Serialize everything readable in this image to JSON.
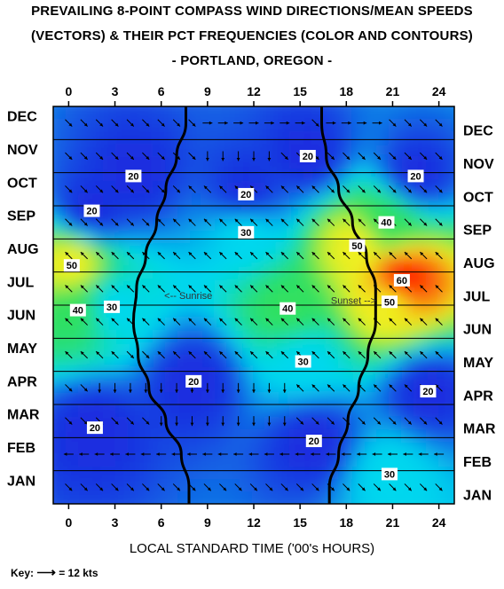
{
  "title_lines": [
    "PREVAILING  8-POINT COMPASS WIND DIRECTIONS/MEAN SPEEDS",
    "(VECTORS) & THEIR PCT FREQUENCIES (COLOR AND CONTOURS)",
    "- PORTLAND, OREGON -"
  ],
  "xlabel": "LOCAL STANDARD TIME ('00's HOURS)",
  "key": {
    "label": "Key:",
    "arrow": "⟶",
    "value": "= 12 kts"
  },
  "colors": {
    "background": "#ffffff",
    "axis": "#000000",
    "grid": "#000000",
    "terminator": "#000000"
  },
  "chart_data": {
    "type": "heatmap",
    "x_ticks": [
      0,
      3,
      6,
      9,
      12,
      15,
      18,
      21,
      24
    ],
    "x_tick_labels": [
      "0",
      "3",
      "6",
      "9",
      "12",
      "15",
      "18",
      "21",
      "24"
    ],
    "xlim": [
      -1,
      25
    ],
    "months_top_to_bottom": [
      "DEC",
      "NOV",
      "OCT",
      "SEP",
      "AUG",
      "JUL",
      "JUN",
      "MAY",
      "APR",
      "MAR",
      "FEB",
      "JAN"
    ],
    "z_description": "percent frequency of prevailing direction",
    "color_scale": [
      {
        "value": 10,
        "color": "#6a10c8"
      },
      {
        "value": 20,
        "color": "#1a2ee0"
      },
      {
        "value": 30,
        "color": "#00d8ee"
      },
      {
        "value": 40,
        "color": "#30e060"
      },
      {
        "value": 50,
        "color": "#f0f020"
      },
      {
        "value": 60,
        "color": "#ff2000"
      }
    ],
    "contour_labels": [
      {
        "text": "20",
        "hour": 15.5,
        "month": "NOV"
      },
      {
        "text": "20",
        "hour": 4.2,
        "month": "OCT",
        "offset": -0.4
      },
      {
        "text": "20",
        "hour": 11.5,
        "month": "OCT",
        "offset": 0.15
      },
      {
        "text": "20",
        "hour": 22.5,
        "month": "OCT",
        "offset": -0.4
      },
      {
        "text": "20",
        "hour": 1.5,
        "month": "SEP",
        "offset": -0.35
      },
      {
        "text": "30",
        "hour": 11.5,
        "month": "SEP",
        "offset": 0.3
      },
      {
        "text": "40",
        "hour": 20.6,
        "month": "SEP"
      },
      {
        "text": "50",
        "hour": 0.2,
        "month": "AUG",
        "offset": 0.3
      },
      {
        "text": "50",
        "hour": 18.7,
        "month": "AUG",
        "offset": -0.3
      },
      {
        "text": "60",
        "hour": 21.6,
        "month": "JUL",
        "offset": -0.25
      },
      {
        "text": "30",
        "hour": 2.8,
        "month": "JUN",
        "offset": -0.45
      },
      {
        "text": "40",
        "hour": 0.6,
        "month": "JUN",
        "offset": -0.35
      },
      {
        "text": "40",
        "hour": 14.2,
        "month": "JUN",
        "offset": -0.4
      },
      {
        "text": "50",
        "hour": 20.8,
        "month": "JUN",
        "offset": -0.6
      },
      {
        "text": "30",
        "hour": 15.2,
        "month": "MAY",
        "offset": 0.2
      },
      {
        "text": "20",
        "hour": 8.1,
        "month": "APR",
        "offset": -0.2
      },
      {
        "text": "20",
        "hour": 23.3,
        "month": "APR",
        "offset": 0.1
      },
      {
        "text": "20",
        "hour": 1.7,
        "month": "MAR",
        "offset": 0.2
      },
      {
        "text": "20",
        "hour": 15.9,
        "month": "FEB",
        "offset": -0.4
      },
      {
        "text": "30",
        "hour": 20.8,
        "month": "JAN",
        "offset": -0.4
      }
    ],
    "annotations": [
      {
        "text": "<-- Sunrise",
        "hour": 6.2,
        "month": "JUL",
        "offset": 0.2
      },
      {
        "text": "Sunset -->",
        "hour": 17.0,
        "month": "JUN",
        "offset": -0.65
      }
    ],
    "sunrise_hours": {
      "JAN": 7.8,
      "FEB": 7.3,
      "MAR": 6.3,
      "APR": 5.2,
      "MAY": 4.5,
      "JUN": 4.2,
      "JUL": 4.4,
      "AUG": 5.0,
      "SEP": 5.7,
      "OCT": 6.3,
      "NOV": 7.0,
      "DEC": 7.6
    },
    "sunset_hours": {
      "JAN": 16.9,
      "FEB": 17.5,
      "MAR": 18.1,
      "APR": 18.8,
      "MAY": 19.4,
      "JUN": 19.9,
      "JUL": 19.9,
      "AUG": 19.3,
      "SEP": 18.4,
      "OCT": 17.5,
      "NOV": 16.7,
      "DEC": 16.4
    },
    "prevailing_directions": {
      "DEC": [
        "SE",
        "SE",
        "SE",
        "SE",
        "SE",
        "SE",
        "SE",
        "SE",
        "SE",
        "E",
        "E",
        "E",
        "E",
        "E",
        "E",
        "E",
        "SE",
        "E",
        "E",
        "E",
        "E",
        "SE",
        "SE",
        "SE",
        "SE"
      ],
      "NOV": [
        "SE",
        "SE",
        "SE",
        "SE",
        "SE",
        "SE",
        "SE",
        "SE",
        "SE",
        "S",
        "S",
        "S",
        "S",
        "S",
        "SE",
        "SE",
        "SE",
        "SE",
        "SE",
        "SE",
        "SE",
        "SE",
        "SE",
        "SE",
        "SE"
      ],
      "OCT": [
        "SE",
        "SE",
        "SE",
        "SE",
        "SE",
        "SE",
        "SE",
        "SE",
        "NW",
        "NW",
        "NW",
        "NW",
        "NW",
        "NW",
        "NW",
        "NW",
        "NW",
        "SE",
        "SE",
        "SE",
        "SE",
        "SE",
        "SE",
        "SE",
        "SE"
      ],
      "SEP": [
        "SE",
        "SE",
        "SE",
        "SE",
        "SE",
        "SE",
        "NW",
        "NW",
        "NW",
        "NW",
        "NW",
        "NW",
        "NW",
        "NW",
        "NW",
        "NW",
        "NW",
        "NW",
        "NW",
        "NW",
        "NW",
        "NW",
        "SE",
        "SE",
        "SE"
      ],
      "AUG": [
        "NW",
        "NW",
        "NW",
        "NW",
        "NW",
        "NW",
        "NW",
        "NW",
        "NW",
        "NW",
        "NW",
        "NW",
        "NW",
        "NW",
        "NW",
        "NW",
        "NW",
        "NW",
        "NW",
        "NW",
        "NW",
        "NW",
        "NW",
        "NW",
        "NW"
      ],
      "JUL": [
        "NW",
        "NW",
        "NW",
        "NW",
        "NW",
        "NW",
        "NW",
        "NW",
        "NW",
        "NW",
        "NW",
        "NW",
        "NW",
        "NW",
        "NW",
        "NW",
        "NW",
        "NW",
        "NW",
        "NW",
        "NW",
        "NW",
        "NW",
        "NW",
        "NW"
      ],
      "JUN": [
        "NW",
        "NW",
        "NW",
        "NW",
        "NW",
        "NW",
        "NW",
        "NW",
        "NW",
        "NW",
        "NW",
        "NW",
        "NW",
        "NW",
        "NW",
        "NW",
        "NW",
        "NW",
        "NW",
        "NW",
        "NW",
        "NW",
        "NW",
        "NW",
        "NW"
      ],
      "MAY": [
        "NW",
        "NW",
        "NW",
        "NW",
        "SE",
        "SE",
        "NW",
        "NW",
        "NW",
        "NW",
        "NW",
        "NW",
        "NW",
        "NW",
        "NW",
        "NW",
        "NW",
        "NW",
        "NW",
        "NW",
        "NW",
        "NW",
        "NW",
        "NW",
        "NW"
      ],
      "APR": [
        "SE",
        "SE",
        "S",
        "S",
        "S",
        "S",
        "S",
        "S",
        "S",
        "S",
        "S",
        "S",
        "S",
        "S",
        "S",
        "NW",
        "NW",
        "NW",
        "NW",
        "NW",
        "NW",
        "NW",
        "NW",
        "NW",
        "NW"
      ],
      "MAR": [
        "SE",
        "SE",
        "SE",
        "SE",
        "SE",
        "SE",
        "S",
        "S",
        "S",
        "S",
        "S",
        "S",
        "S",
        "S",
        "S",
        "SE",
        "SE",
        "SE",
        "SE",
        "SE",
        "SE",
        "SE",
        "SE",
        "SE",
        "SE"
      ],
      "FEB": [
        "W",
        "W",
        "W",
        "W",
        "W",
        "W",
        "W",
        "W",
        "W",
        "W",
        "W",
        "W",
        "W",
        "W",
        "W",
        "W",
        "W",
        "W",
        "W",
        "W",
        "W",
        "W",
        "W",
        "W",
        "W"
      ],
      "JAN": [
        "SE",
        "SE",
        "SE",
        "SE",
        "SE",
        "SE",
        "SE",
        "SE",
        "SE",
        "SE",
        "SE",
        "SE",
        "SE",
        "SE",
        "SE",
        "SE",
        "SE",
        "SE",
        "SE",
        "SE",
        "SE",
        "SE",
        "SE",
        "SE",
        "SE"
      ]
    }
  }
}
